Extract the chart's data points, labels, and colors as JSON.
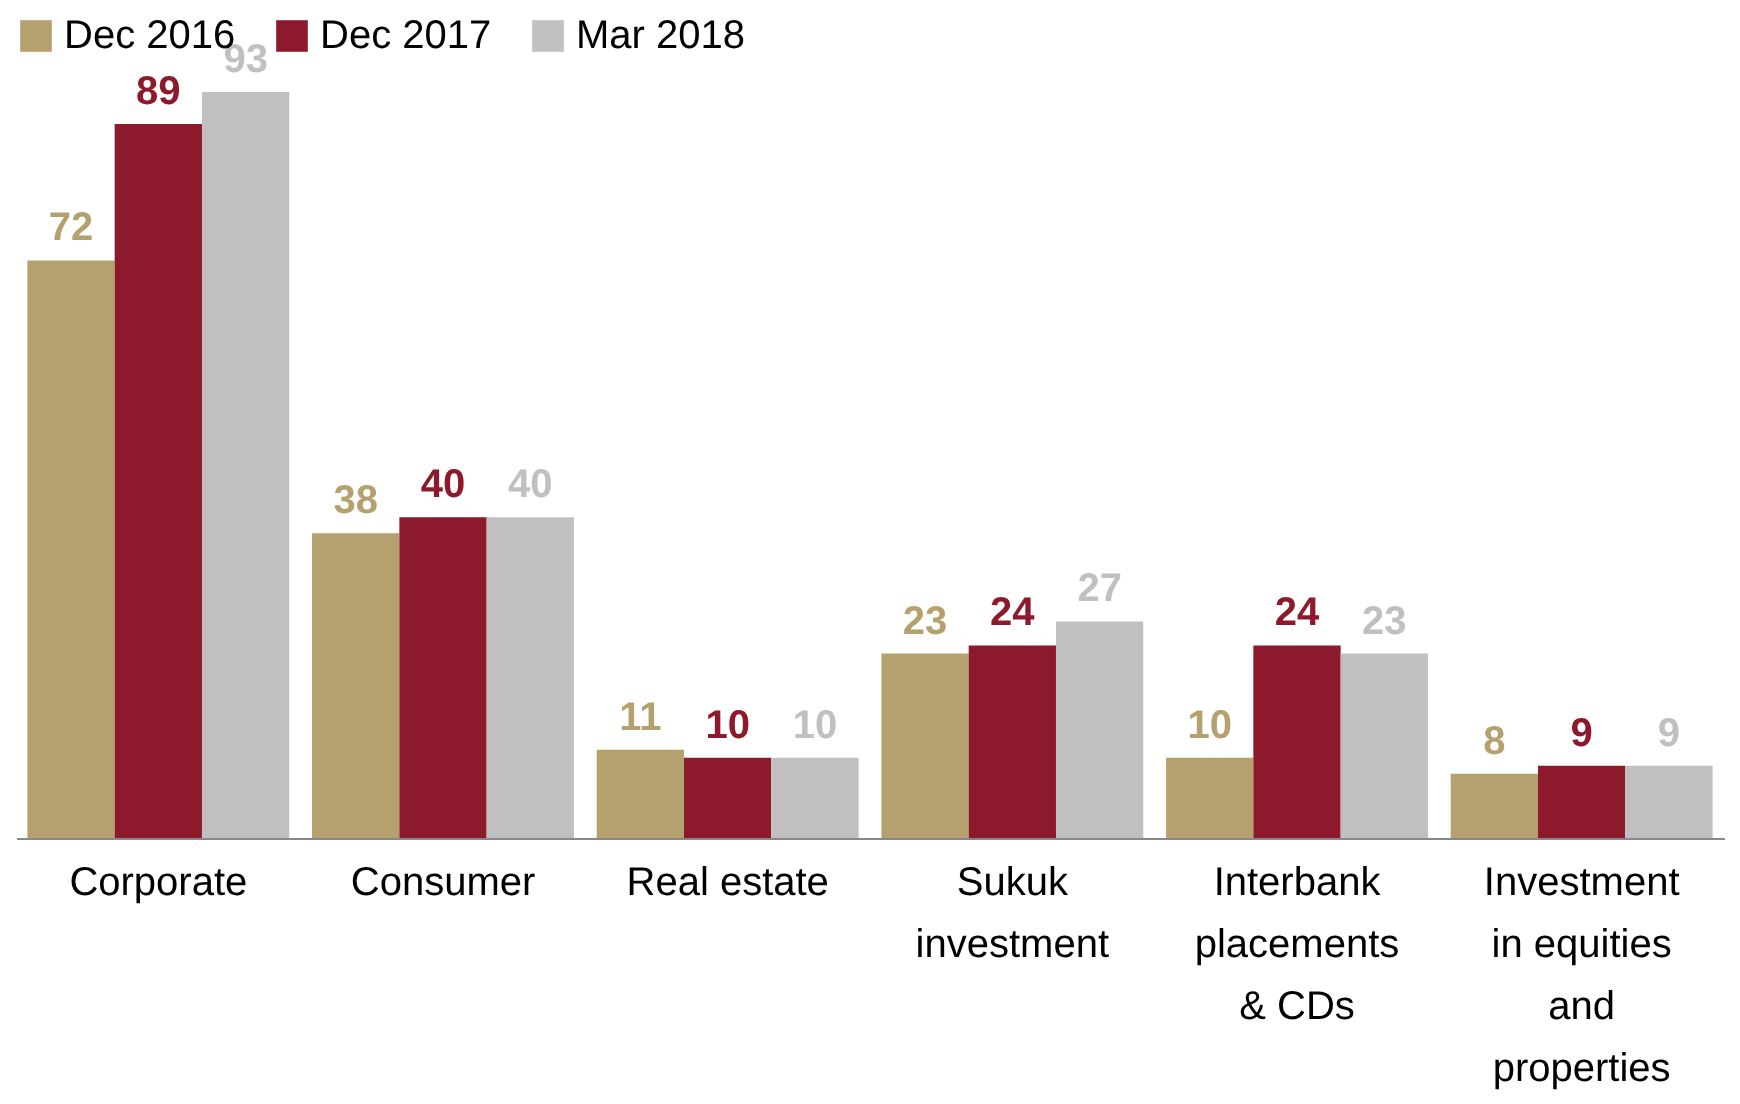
{
  "chart_data": {
    "type": "bar",
    "categories": [
      "Corporate",
      "Consumer",
      "Real estate",
      "Sukuk investment",
      "Interbank placements & CDs",
      "Investment in equities and properties"
    ],
    "series": [
      {
        "name": "Dec 2016",
        "color": "#b5a16e",
        "values": [
          72,
          38,
          11,
          23,
          10,
          8
        ]
      },
      {
        "name": "Dec 2017",
        "color": "#8c1a2c",
        "values": [
          89,
          40,
          10,
          24,
          24,
          9
        ]
      },
      {
        "name": "Mar 2018",
        "color": "#c0c0c0",
        "values": [
          93,
          40,
          10,
          27,
          23,
          9
        ]
      }
    ],
    "data_labels": true,
    "legend": "top",
    "grid": false
  }
}
